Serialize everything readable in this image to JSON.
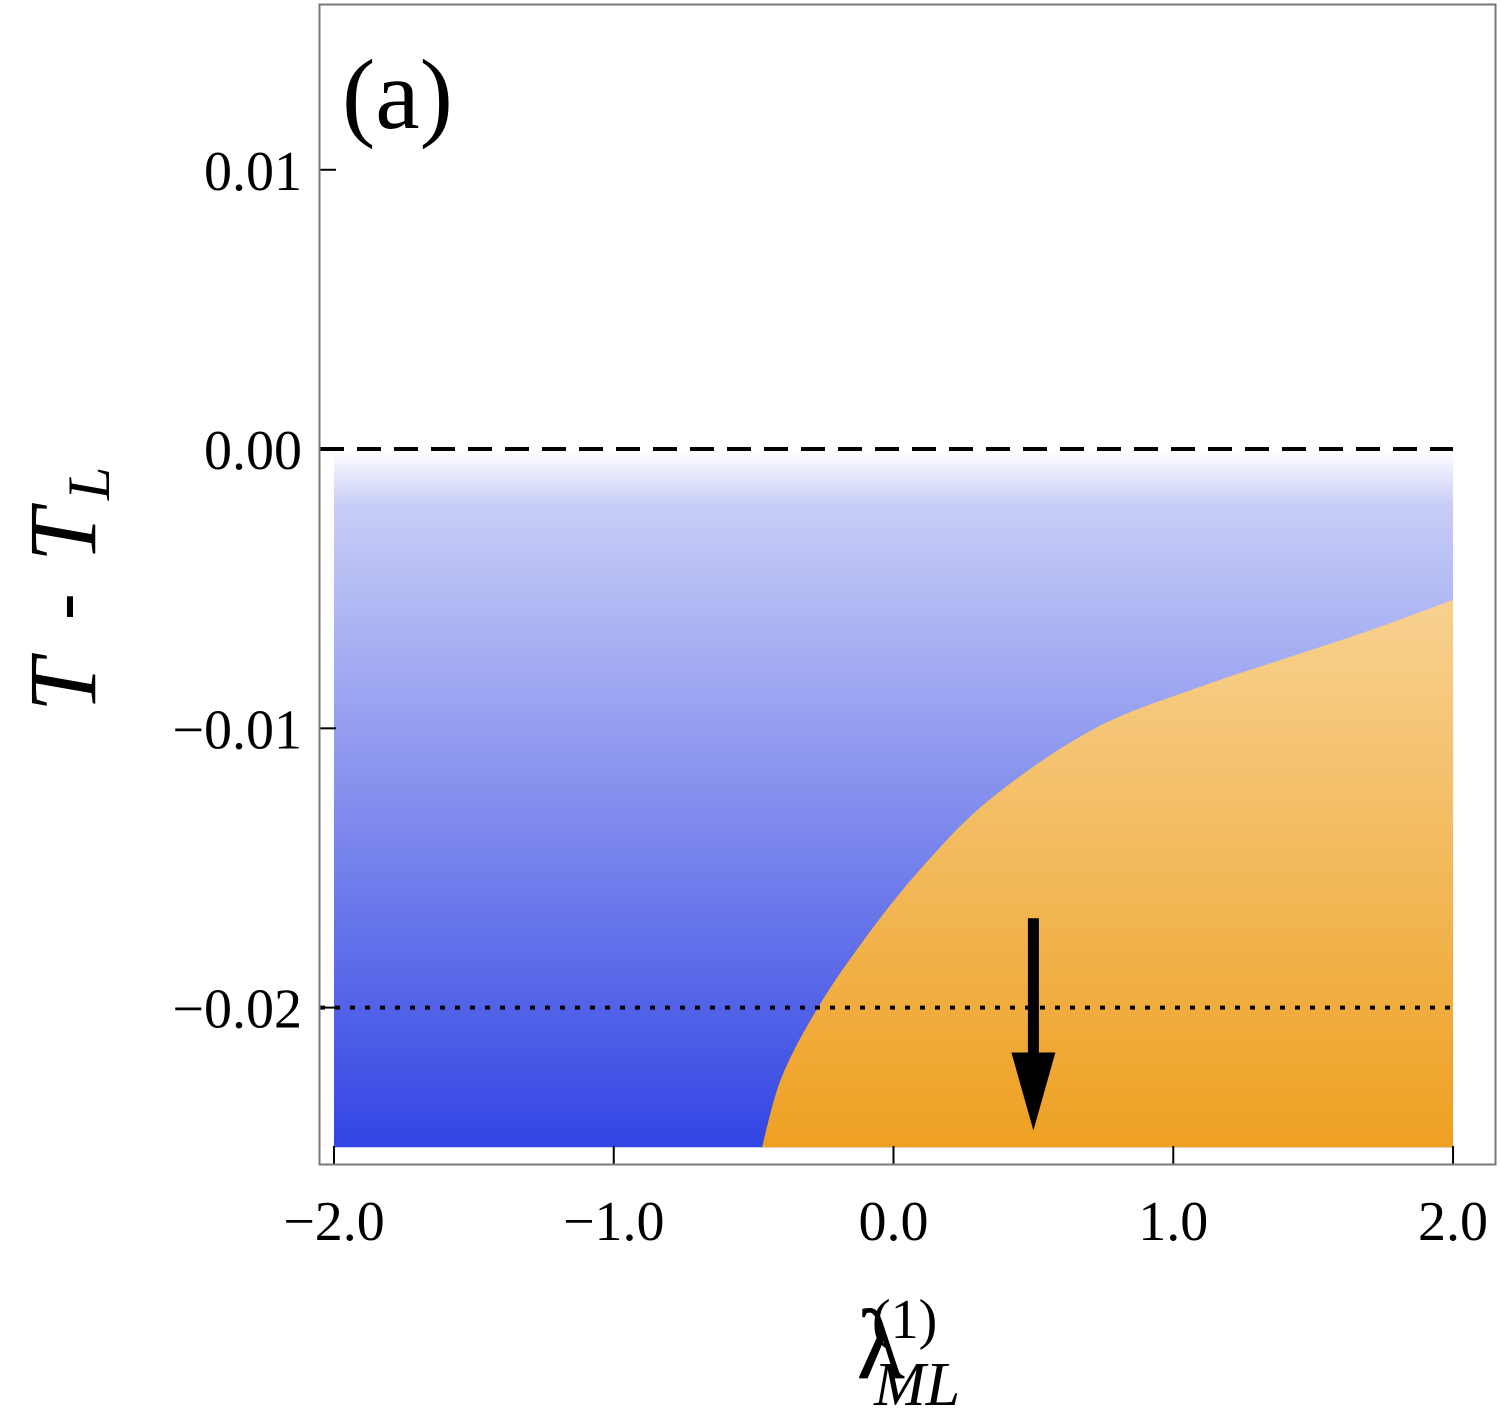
{
  "chart_data": {
    "type": "heatmap",
    "panel_label": "(a)",
    "xlabel": {
      "main": "λ",
      "superscript": "(1)",
      "subscript": "ML"
    },
    "ylabel": {
      "main": "T",
      "operator": "-",
      "second": "T",
      "subscript": "L"
    },
    "xlim": [
      -2.05,
      2.15
    ],
    "ylim": [
      -0.0256,
      0.0159
    ],
    "x_ticks": [
      {
        "value": -2.0,
        "label": "−2.0"
      },
      {
        "value": -1.0,
        "label": "−1.0"
      },
      {
        "value": 0.0,
        "label": "0.0"
      },
      {
        "value": 1.0,
        "label": "1.0"
      },
      {
        "value": 2.0,
        "label": "2.0"
      }
    ],
    "y_ticks": [
      {
        "value": 0.01,
        "label": "0.01"
      },
      {
        "value": 0.0,
        "label": "0.00"
      },
      {
        "value": -0.01,
        "label": "−0.01"
      },
      {
        "value": -0.02,
        "label": "−0.02"
      }
    ],
    "region_extent": {
      "x": [
        -2.0,
        2.0
      ],
      "y": [
        -0.025,
        0.0
      ]
    },
    "regions": [
      {
        "name": "blue",
        "color_top": "#ffffff",
        "color_bottom": "#3245e4"
      },
      {
        "name": "orange",
        "color_top": "#f7d190",
        "color_bottom": "#eea022"
      }
    ],
    "boundary": [
      {
        "x": -0.47,
        "y": -0.025
      },
      {
        "x": -0.4,
        "y": -0.0225
      },
      {
        "x": -0.27,
        "y": -0.02
      },
      {
        "x": -0.1,
        "y": -0.0175
      },
      {
        "x": 0.1,
        "y": -0.015
      },
      {
        "x": 0.35,
        "y": -0.0125
      },
      {
        "x": 0.72,
        "y": -0.01
      },
      {
        "x": 1.1,
        "y": -0.0085
      },
      {
        "x": 1.4,
        "y": -0.0075
      },
      {
        "x": 1.7,
        "y": -0.0065
      },
      {
        "x": 2.0,
        "y": -0.0054
      }
    ],
    "reference_lines": [
      {
        "y": 0.0,
        "style": "dashed"
      },
      {
        "y": -0.02,
        "style": "dotted"
      }
    ],
    "arrow": {
      "x": 0.5,
      "y_from": -0.0168,
      "y_to": -0.0244
    }
  }
}
